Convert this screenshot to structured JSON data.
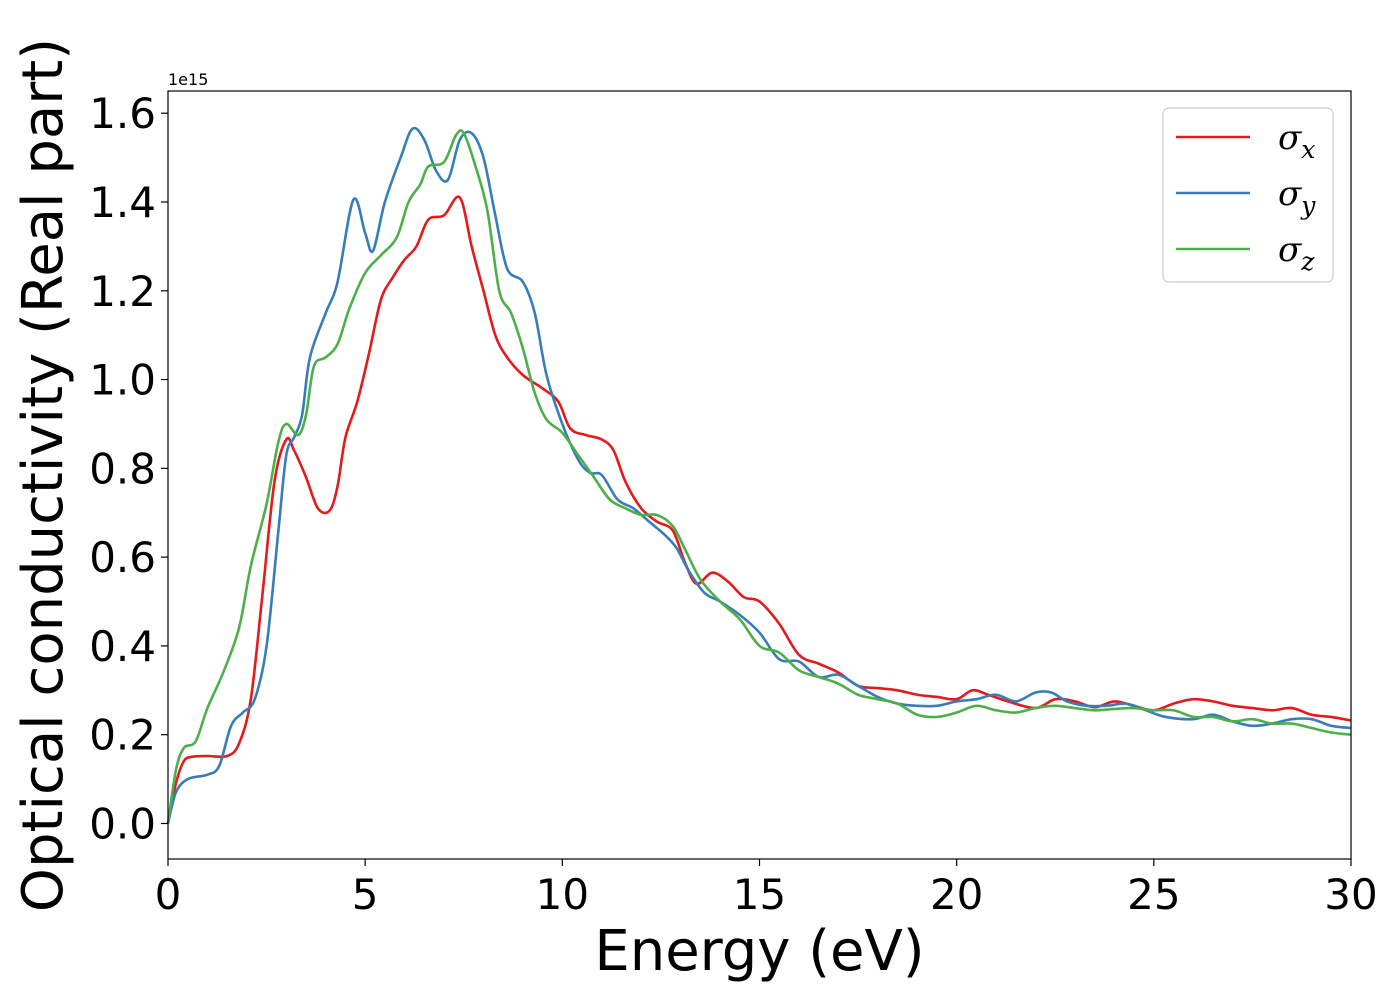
{
  "chart_data": {
    "type": "line",
    "title": "",
    "xlabel": "Energy (eV)",
    "ylabel": "Optical conductivity (Real part)",
    "y_offset_label": "1e15",
    "xlim": [
      0,
      30
    ],
    "ylim": [
      -0.08,
      1.65
    ],
    "xticks": [
      0,
      5,
      10,
      15,
      20,
      25,
      30
    ],
    "yticks": [
      0.0,
      0.2,
      0.4,
      0.6,
      0.8,
      1.0,
      1.2,
      1.4,
      1.6
    ],
    "ytick_labels": [
      "0.0",
      "0.2",
      "0.4",
      "0.6",
      "0.8",
      "1.0",
      "1.2",
      "1.4",
      "1.6"
    ],
    "grid": false,
    "legend_position": "top-right",
    "series": [
      {
        "name": "σ",
        "subscript": "x",
        "color": "#e41a1c",
        "points": [
          [
            0,
            0.0
          ],
          [
            0.2,
            0.09
          ],
          [
            0.4,
            0.14
          ],
          [
            0.6,
            0.15
          ],
          [
            1.0,
            0.152
          ],
          [
            1.5,
            0.152
          ],
          [
            1.8,
            0.18
          ],
          [
            2.1,
            0.28
          ],
          [
            2.4,
            0.52
          ],
          [
            2.7,
            0.77
          ],
          [
            3.0,
            0.865
          ],
          [
            3.2,
            0.84
          ],
          [
            3.5,
            0.78
          ],
          [
            3.8,
            0.71
          ],
          [
            4.1,
            0.705
          ],
          [
            4.3,
            0.76
          ],
          [
            4.5,
            0.87
          ],
          [
            4.8,
            0.95
          ],
          [
            5.1,
            1.06
          ],
          [
            5.4,
            1.18
          ],
          [
            5.7,
            1.23
          ],
          [
            6.0,
            1.27
          ],
          [
            6.3,
            1.3
          ],
          [
            6.6,
            1.36
          ],
          [
            7.0,
            1.37
          ],
          [
            7.4,
            1.41
          ],
          [
            7.7,
            1.3
          ],
          [
            8.0,
            1.2
          ],
          [
            8.3,
            1.1
          ],
          [
            8.6,
            1.05
          ],
          [
            9.0,
            1.01
          ],
          [
            9.5,
            0.98
          ],
          [
            9.9,
            0.95
          ],
          [
            10.2,
            0.89
          ],
          [
            10.6,
            0.875
          ],
          [
            11.0,
            0.865
          ],
          [
            11.3,
            0.84
          ],
          [
            11.6,
            0.77
          ],
          [
            12.0,
            0.71
          ],
          [
            12.4,
            0.68
          ],
          [
            12.8,
            0.66
          ],
          [
            13.1,
            0.59
          ],
          [
            13.4,
            0.54
          ],
          [
            13.8,
            0.565
          ],
          [
            14.2,
            0.545
          ],
          [
            14.6,
            0.51
          ],
          [
            15.0,
            0.5
          ],
          [
            15.5,
            0.45
          ],
          [
            16.0,
            0.38
          ],
          [
            16.5,
            0.36
          ],
          [
            17.0,
            0.34
          ],
          [
            17.5,
            0.31
          ],
          [
            18.0,
            0.305
          ],
          [
            18.5,
            0.3
          ],
          [
            19.0,
            0.29
          ],
          [
            19.5,
            0.285
          ],
          [
            20.0,
            0.28
          ],
          [
            20.4,
            0.3
          ],
          [
            20.8,
            0.29
          ],
          [
            21.3,
            0.275
          ],
          [
            22.0,
            0.26
          ],
          [
            22.5,
            0.28
          ],
          [
            23.0,
            0.275
          ],
          [
            23.5,
            0.262
          ],
          [
            24.0,
            0.275
          ],
          [
            24.5,
            0.265
          ],
          [
            25.0,
            0.255
          ],
          [
            25.5,
            0.27
          ],
          [
            26.0,
            0.28
          ],
          [
            26.5,
            0.275
          ],
          [
            27.0,
            0.265
          ],
          [
            27.5,
            0.26
          ],
          [
            28.0,
            0.255
          ],
          [
            28.5,
            0.26
          ],
          [
            29.0,
            0.245
          ],
          [
            29.5,
            0.24
          ],
          [
            30.0,
            0.232
          ]
        ]
      },
      {
        "name": "σ",
        "subscript": "y",
        "color": "#377eb8",
        "points": [
          [
            0,
            0.0
          ],
          [
            0.2,
            0.07
          ],
          [
            0.5,
            0.1
          ],
          [
            1.0,
            0.11
          ],
          [
            1.3,
            0.13
          ],
          [
            1.6,
            0.22
          ],
          [
            1.9,
            0.25
          ],
          [
            2.2,
            0.28
          ],
          [
            2.5,
            0.4
          ],
          [
            2.8,
            0.66
          ],
          [
            3.0,
            0.83
          ],
          [
            3.2,
            0.87
          ],
          [
            3.4,
            0.92
          ],
          [
            3.6,
            1.05
          ],
          [
            4.0,
            1.15
          ],
          [
            4.3,
            1.22
          ],
          [
            4.7,
            1.405
          ],
          [
            5.0,
            1.33
          ],
          [
            5.2,
            1.29
          ],
          [
            5.5,
            1.4
          ],
          [
            5.9,
            1.5
          ],
          [
            6.2,
            1.565
          ],
          [
            6.5,
            1.54
          ],
          [
            6.8,
            1.47
          ],
          [
            7.1,
            1.45
          ],
          [
            7.4,
            1.54
          ],
          [
            7.7,
            1.555
          ],
          [
            8.0,
            1.5
          ],
          [
            8.3,
            1.37
          ],
          [
            8.6,
            1.25
          ],
          [
            9.0,
            1.22
          ],
          [
            9.3,
            1.15
          ],
          [
            9.6,
            1.01
          ],
          [
            10.0,
            0.9
          ],
          [
            10.4,
            0.82
          ],
          [
            10.7,
            0.79
          ],
          [
            11.0,
            0.785
          ],
          [
            11.4,
            0.73
          ],
          [
            11.8,
            0.71
          ],
          [
            12.2,
            0.68
          ],
          [
            12.6,
            0.65
          ],
          [
            12.9,
            0.62
          ],
          [
            13.2,
            0.57
          ],
          [
            13.6,
            0.52
          ],
          [
            14.0,
            0.5
          ],
          [
            14.5,
            0.47
          ],
          [
            15.0,
            0.43
          ],
          [
            15.5,
            0.37
          ],
          [
            16.0,
            0.365
          ],
          [
            16.5,
            0.33
          ],
          [
            17.0,
            0.335
          ],
          [
            17.5,
            0.31
          ],
          [
            18.0,
            0.285
          ],
          [
            18.5,
            0.27
          ],
          [
            19.0,
            0.265
          ],
          [
            19.5,
            0.265
          ],
          [
            20.0,
            0.275
          ],
          [
            20.5,
            0.28
          ],
          [
            21.0,
            0.29
          ],
          [
            21.5,
            0.275
          ],
          [
            22.0,
            0.295
          ],
          [
            22.4,
            0.295
          ],
          [
            22.8,
            0.275
          ],
          [
            23.3,
            0.265
          ],
          [
            23.8,
            0.265
          ],
          [
            24.3,
            0.27
          ],
          [
            24.8,
            0.255
          ],
          [
            25.3,
            0.24
          ],
          [
            26.0,
            0.235
          ],
          [
            26.5,
            0.245
          ],
          [
            27.0,
            0.23
          ],
          [
            27.5,
            0.22
          ],
          [
            28.0,
            0.225
          ],
          [
            28.5,
            0.235
          ],
          [
            29.0,
            0.235
          ],
          [
            29.5,
            0.22
          ],
          [
            30.0,
            0.215
          ]
        ]
      },
      {
        "name": "σ",
        "subscript": "z",
        "color": "#4daf4a",
        "points": [
          [
            0,
            0.0
          ],
          [
            0.2,
            0.12
          ],
          [
            0.4,
            0.17
          ],
          [
            0.7,
            0.185
          ],
          [
            1.0,
            0.26
          ],
          [
            1.4,
            0.34
          ],
          [
            1.8,
            0.44
          ],
          [
            2.1,
            0.58
          ],
          [
            2.5,
            0.72
          ],
          [
            2.8,
            0.86
          ],
          [
            3.0,
            0.9
          ],
          [
            3.3,
            0.875
          ],
          [
            3.5,
            0.92
          ],
          [
            3.7,
            1.03
          ],
          [
            4.0,
            1.05
          ],
          [
            4.3,
            1.08
          ],
          [
            4.6,
            1.16
          ],
          [
            5.0,
            1.24
          ],
          [
            5.4,
            1.28
          ],
          [
            5.8,
            1.32
          ],
          [
            6.1,
            1.4
          ],
          [
            6.4,
            1.44
          ],
          [
            6.6,
            1.48
          ],
          [
            7.0,
            1.49
          ],
          [
            7.3,
            1.55
          ],
          [
            7.5,
            1.555
          ],
          [
            7.8,
            1.48
          ],
          [
            8.1,
            1.38
          ],
          [
            8.4,
            1.2
          ],
          [
            8.7,
            1.15
          ],
          [
            9.0,
            1.07
          ],
          [
            9.3,
            0.97
          ],
          [
            9.6,
            0.91
          ],
          [
            10.0,
            0.88
          ],
          [
            10.4,
            0.83
          ],
          [
            10.8,
            0.78
          ],
          [
            11.2,
            0.73
          ],
          [
            11.6,
            0.71
          ],
          [
            12.0,
            0.695
          ],
          [
            12.4,
            0.695
          ],
          [
            12.8,
            0.67
          ],
          [
            13.1,
            0.62
          ],
          [
            13.5,
            0.55
          ],
          [
            14.0,
            0.5
          ],
          [
            14.5,
            0.46
          ],
          [
            15.0,
            0.4
          ],
          [
            15.5,
            0.385
          ],
          [
            16.0,
            0.345
          ],
          [
            16.5,
            0.33
          ],
          [
            17.0,
            0.315
          ],
          [
            17.5,
            0.29
          ],
          [
            18.0,
            0.28
          ],
          [
            18.5,
            0.27
          ],
          [
            19.0,
            0.245
          ],
          [
            19.5,
            0.24
          ],
          [
            20.0,
            0.25
          ],
          [
            20.5,
            0.265
          ],
          [
            21.0,
            0.255
          ],
          [
            21.5,
            0.25
          ],
          [
            22.0,
            0.26
          ],
          [
            22.5,
            0.265
          ],
          [
            23.0,
            0.26
          ],
          [
            23.5,
            0.255
          ],
          [
            24.0,
            0.258
          ],
          [
            24.5,
            0.26
          ],
          [
            25.0,
            0.255
          ],
          [
            25.5,
            0.255
          ],
          [
            26.0,
            0.24
          ],
          [
            26.5,
            0.24
          ],
          [
            27.0,
            0.23
          ],
          [
            27.5,
            0.235
          ],
          [
            28.0,
            0.225
          ],
          [
            28.5,
            0.225
          ],
          [
            29.0,
            0.215
          ],
          [
            29.5,
            0.205
          ],
          [
            30.0,
            0.2
          ]
        ]
      }
    ]
  }
}
